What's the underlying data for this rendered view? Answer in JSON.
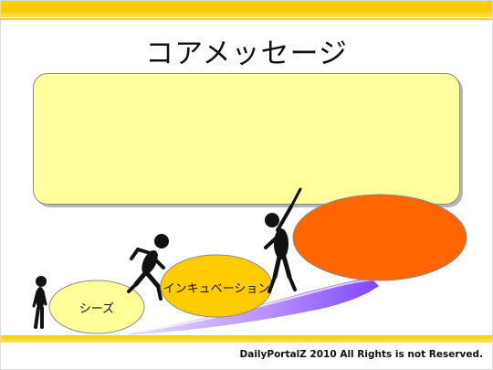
{
  "slide": {
    "title": "コアメッセージ",
    "stages": [
      {
        "label": "シーズ",
        "color": "#ffff99"
      },
      {
        "label": "インキュベーション",
        "color": "#ffcc00"
      },
      {
        "label": "",
        "color": "#ff6600"
      }
    ],
    "box_color": "#ffff9e",
    "accent": "#ffcc00",
    "swoosh_color": "#9966ff",
    "footer": "DailyPortalZ 2010  All Rights is not Reserved."
  }
}
